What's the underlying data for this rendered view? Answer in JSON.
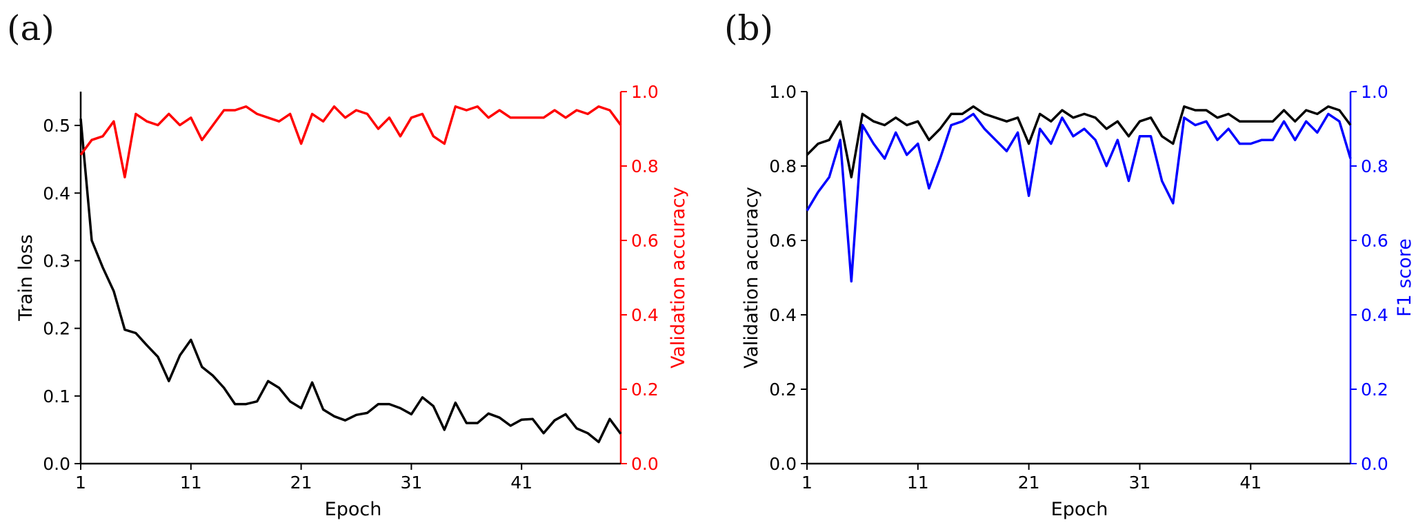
{
  "panels": [
    {
      "label": "(a)",
      "left_axis_label": "Train loss",
      "right_axis_label": "Validation accuracy",
      "x_axis_label": "Epoch"
    },
    {
      "label": "(b)",
      "left_axis_label": "Validation accuracy",
      "right_axis_label": "F1 score",
      "x_axis_label": "Epoch"
    }
  ],
  "colors": {
    "black": "#000000",
    "red": "#ff0000",
    "blue": "#0000ff"
  },
  "chart_data": [
    {
      "type": "line",
      "panel": "(a)",
      "xlabel": "Epoch",
      "ylabel": "Train loss",
      "y2label": "Validation accuracy",
      "xlim": [
        1,
        50
      ],
      "ylim": [
        0,
        0.55
      ],
      "y2lim": [
        0,
        1.0
      ],
      "xticks": [
        1,
        11,
        21,
        31,
        41
      ],
      "yticks": [
        0.0,
        0.1,
        0.2,
        0.3,
        0.4,
        0.5
      ],
      "y2ticks": [
        0.0,
        0.2,
        0.4,
        0.6,
        0.8,
        1.0
      ],
      "grid": false,
      "series": [
        {
          "axis": "left",
          "color": "#000000",
          "values": [
            0.51,
            0.33,
            0.29,
            0.255,
            0.198,
            0.193,
            0.175,
            0.158,
            0.122,
            0.16,
            0.183,
            0.143,
            0.13,
            0.112,
            0.088,
            0.088,
            0.092,
            0.122,
            0.112,
            0.092,
            0.082,
            0.12,
            0.08,
            0.07,
            0.064,
            0.072,
            0.075,
            0.088,
            0.088,
            0.082,
            0.073,
            0.098,
            0.085,
            0.05,
            0.09,
            0.06,
            0.06,
            0.074,
            0.068,
            0.056,
            0.065,
            0.066,
            0.045,
            0.064,
            0.073,
            0.052,
            0.045,
            0.032,
            0.066,
            0.044
          ]
        },
        {
          "axis": "right",
          "color": "#ff0000",
          "values": [
            0.83,
            0.87,
            0.88,
            0.92,
            0.77,
            0.94,
            0.92,
            0.91,
            0.94,
            0.91,
            0.93,
            0.87,
            0.91,
            0.95,
            0.95,
            0.96,
            0.94,
            0.93,
            0.92,
            0.94,
            0.86,
            0.94,
            0.92,
            0.96,
            0.93,
            0.95,
            0.94,
            0.9,
            0.93,
            0.88,
            0.93,
            0.94,
            0.88,
            0.86,
            0.96,
            0.95,
            0.96,
            0.93,
            0.95,
            0.93,
            0.93,
            0.93,
            0.93,
            0.95,
            0.93,
            0.95,
            0.94,
            0.96,
            0.95,
            0.91
          ]
        }
      ]
    },
    {
      "type": "line",
      "panel": "(b)",
      "xlabel": "Epoch",
      "ylabel": "Validation accuracy",
      "y2label": "F1 score",
      "xlim": [
        1,
        50
      ],
      "ylim": [
        0,
        1.0
      ],
      "y2lim": [
        0,
        1.0
      ],
      "xticks": [
        1,
        11,
        21,
        31,
        41
      ],
      "yticks": [
        0.0,
        0.2,
        0.4,
        0.6,
        0.8,
        1.0
      ],
      "y2ticks": [
        0.0,
        0.2,
        0.4,
        0.6,
        0.8,
        1.0
      ],
      "grid": false,
      "series": [
        {
          "axis": "left",
          "color": "#000000",
          "values": [
            0.83,
            0.86,
            0.87,
            0.92,
            0.77,
            0.94,
            0.92,
            0.91,
            0.93,
            0.91,
            0.92,
            0.87,
            0.9,
            0.94,
            0.94,
            0.96,
            0.94,
            0.93,
            0.92,
            0.93,
            0.86,
            0.94,
            0.92,
            0.95,
            0.93,
            0.94,
            0.93,
            0.9,
            0.92,
            0.88,
            0.92,
            0.93,
            0.88,
            0.86,
            0.96,
            0.95,
            0.95,
            0.93,
            0.94,
            0.92,
            0.92,
            0.92,
            0.92,
            0.95,
            0.92,
            0.95,
            0.94,
            0.96,
            0.95,
            0.91
          ]
        },
        {
          "axis": "right",
          "color": "#0000ff",
          "values": [
            0.68,
            0.73,
            0.77,
            0.87,
            0.49,
            0.91,
            0.86,
            0.82,
            0.89,
            0.83,
            0.86,
            0.74,
            0.82,
            0.91,
            0.92,
            0.94,
            0.9,
            0.87,
            0.84,
            0.89,
            0.72,
            0.9,
            0.86,
            0.93,
            0.88,
            0.9,
            0.87,
            0.8,
            0.87,
            0.76,
            0.88,
            0.88,
            0.76,
            0.7,
            0.93,
            0.91,
            0.92,
            0.87,
            0.9,
            0.86,
            0.86,
            0.87,
            0.87,
            0.92,
            0.87,
            0.92,
            0.89,
            0.94,
            0.92,
            0.82
          ]
        }
      ]
    }
  ]
}
